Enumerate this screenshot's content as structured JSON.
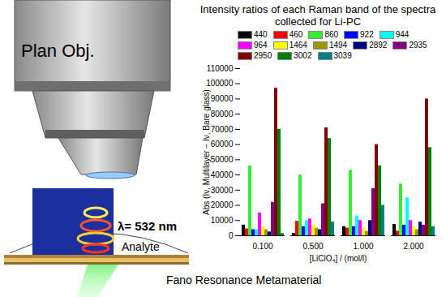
{
  "chart_data": {
    "type": "bar",
    "title": "Intensity ratios of each Raman band of the spectra collected for Li-PC",
    "x_label": "[LiClO₄] / (mol/l)",
    "y_label": "Abs (Iν, Multilayer − Iν, Bare glass)",
    "categories": [
      "0.100",
      "0.500",
      "1.000",
      "2.000"
    ],
    "series": [
      {
        "name": "440",
        "color": "#000000",
        "values": [
          7000,
          1500,
          6000,
          7500
        ]
      },
      {
        "name": "460",
        "color": "#ff0000",
        "values": [
          4500,
          9500,
          5000,
          3000
        ]
      },
      {
        "name": "860",
        "color": "#33ee33",
        "values": [
          46000,
          40000,
          43000,
          34000
        ]
      },
      {
        "name": "922",
        "color": "#0000ff",
        "values": [
          4000,
          6000,
          6000,
          7000
        ]
      },
      {
        "name": "944",
        "color": "#00ffff",
        "values": [
          4000,
          10000,
          13000,
          25000
        ]
      },
      {
        "name": "964",
        "color": "#ff00ff",
        "values": [
          15000,
          11000,
          10000,
          10000
        ]
      },
      {
        "name": "1464",
        "color": "#ffff00",
        "values": [
          6000,
          7000,
          5000,
          6000
        ]
      },
      {
        "name": "1494",
        "color": "#999900",
        "values": [
          4000,
          5000,
          3000,
          4000
        ]
      },
      {
        "name": "2892",
        "color": "#000080",
        "values": [
          2500,
          4000,
          10000,
          9000
        ]
      },
      {
        "name": "2935",
        "color": "#800080",
        "values": [
          22000,
          21000,
          31000,
          7000
        ]
      },
      {
        "name": "2950",
        "color": "#800000",
        "values": [
          97000,
          71000,
          60000,
          90000
        ]
      },
      {
        "name": "3002",
        "color": "#008000",
        "values": [
          70000,
          64000,
          46000,
          58000
        ]
      },
      {
        "name": "3039",
        "color": "#008080",
        "values": [
          1500,
          9000,
          20000,
          6000
        ]
      }
    ],
    "ylim": [
      0,
      110000
    ],
    "yticks": [
      0,
      10000,
      20000,
      30000,
      40000,
      50000,
      60000,
      70000,
      80000,
      90000,
      100000,
      110000
    ],
    "grid": false,
    "legend": "top"
  },
  "diagram": {
    "objective_label": "Plan Obj.",
    "wavelength_label": "λ= 532 nm",
    "analyte_label": "Analyte",
    "substrate_label": "Fano Resonance Metamaterial"
  }
}
